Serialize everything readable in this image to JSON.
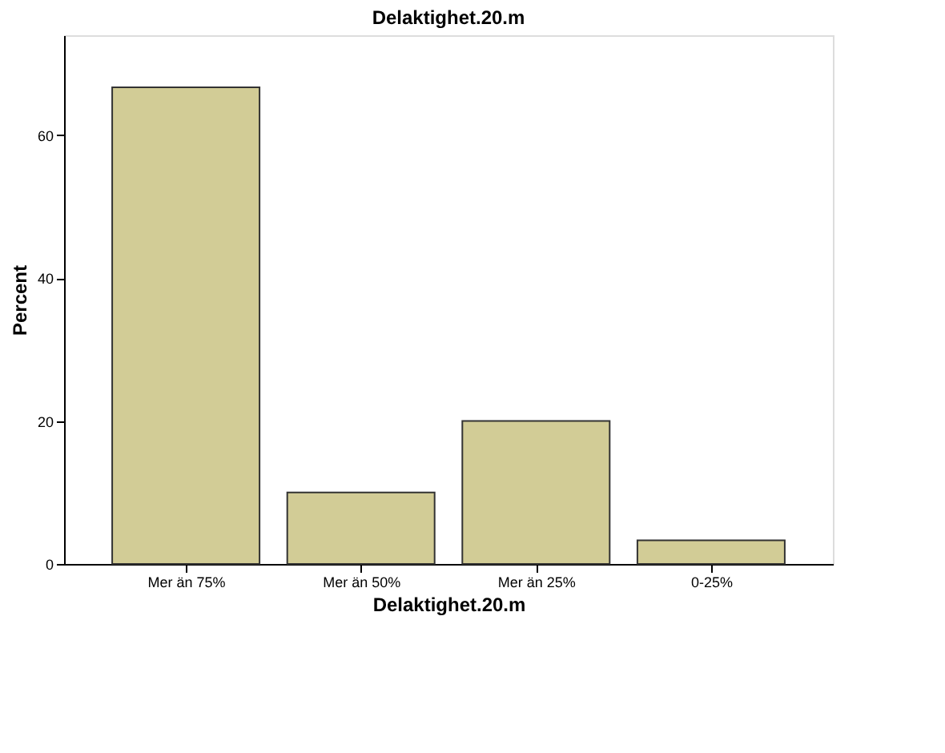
{
  "chart_data": {
    "type": "bar",
    "title": "Delaktighet.20.m",
    "xlabel": "Delaktighet.20.m",
    "ylabel": "Percent",
    "categories": [
      "Mer än 75%",
      "Mer än 50%",
      "Mer än 25%",
      "0-25%"
    ],
    "values": [
      66.7,
      10.0,
      20.0,
      3.3
    ],
    "color": "#d2cc96",
    "ylim": [
      0,
      74
    ],
    "yticks": [
      0,
      20,
      40,
      60
    ],
    "grid": false
  }
}
